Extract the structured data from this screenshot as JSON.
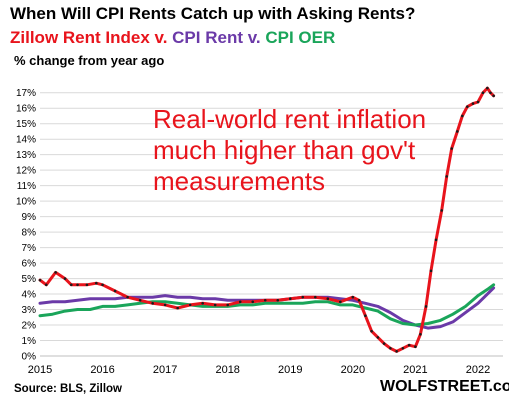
{
  "chart_data": {
    "type": "line",
    "title": "When Will CPI Rents Catch up with Asking Rents?",
    "subtitle_parts": [
      {
        "text": "Zillow Rent Index v. ",
        "color": "#e8141c"
      },
      {
        "text": "CPI Rent v. ",
        "color": "#6b3aa8"
      },
      {
        "text": "CPI OER",
        "color": "#1aa55a"
      }
    ],
    "ylabel": "% change from year ago",
    "annotation": [
      "Real-world rent inflation",
      "much higher than gov't",
      "measurements"
    ],
    "source": "Source: BLS, Zillow",
    "brand": "WOLFSTREET.com",
    "ylim": [
      0,
      17.5
    ],
    "xlim": [
      2015,
      2022.4
    ],
    "yticks": [
      0,
      1,
      2,
      3,
      4,
      5,
      6,
      7,
      8,
      9,
      10,
      11,
      12,
      13,
      14,
      15,
      16,
      17
    ],
    "ytick_labels": [
      "0%",
      "1%",
      "2%",
      "3%",
      "4%",
      "5%",
      "6%",
      "7%",
      "8%",
      "9%",
      "10%",
      "11%",
      "12%",
      "13%",
      "14%",
      "15%",
      "16%",
      "17%"
    ],
    "xticks": [
      2015,
      2016,
      2017,
      2018,
      2019,
      2020,
      2021,
      2022
    ],
    "xtick_labels": [
      "2015",
      "2016",
      "2017",
      "2018",
      "2019",
      "2020",
      "2021",
      "2022"
    ],
    "grid": "horizontal",
    "series": [
      {
        "name": "Zillow Rent Index",
        "color": "#e8141c",
        "markers": true,
        "x": [
          2015.0,
          2015.1,
          2015.25,
          2015.4,
          2015.5,
          2015.6,
          2015.75,
          2015.9,
          2016.0,
          2016.2,
          2016.4,
          2016.6,
          2016.8,
          2017.0,
          2017.2,
          2017.4,
          2017.6,
          2017.8,
          2018.0,
          2018.2,
          2018.4,
          2018.6,
          2018.8,
          2019.0,
          2019.2,
          2019.4,
          2019.6,
          2019.8,
          2020.0,
          2020.1,
          2020.2,
          2020.3,
          2020.4,
          2020.5,
          2020.6,
          2020.7,
          2020.8,
          2020.9,
          2021.0,
          2021.08,
          2021.17,
          2021.25,
          2021.33,
          2021.42,
          2021.5,
          2021.58,
          2021.67,
          2021.75,
          2021.83,
          2021.92,
          2022.0,
          2022.08,
          2022.15,
          2022.2,
          2022.25
        ],
        "values": [
          4.9,
          4.6,
          5.4,
          5.0,
          4.6,
          4.6,
          4.6,
          4.7,
          4.6,
          4.2,
          3.8,
          3.6,
          3.4,
          3.3,
          3.1,
          3.3,
          3.4,
          3.3,
          3.3,
          3.5,
          3.5,
          3.6,
          3.6,
          3.7,
          3.8,
          3.8,
          3.7,
          3.5,
          3.8,
          3.6,
          2.6,
          1.6,
          1.2,
          0.8,
          0.5,
          0.3,
          0.5,
          0.7,
          0.6,
          1.4,
          3.2,
          5.5,
          7.5,
          9.4,
          11.6,
          13.4,
          14.5,
          15.5,
          16.1,
          16.3,
          16.4,
          17.0,
          17.3,
          17.0,
          16.8
        ]
      },
      {
        "name": "CPI Rent",
        "color": "#6b3aa8",
        "markers": false,
        "x": [
          2015.0,
          2015.2,
          2015.4,
          2015.6,
          2015.8,
          2016.0,
          2016.2,
          2016.4,
          2016.6,
          2016.8,
          2017.0,
          2017.2,
          2017.4,
          2017.6,
          2017.8,
          2018.0,
          2018.2,
          2018.4,
          2018.6,
          2018.8,
          2019.0,
          2019.2,
          2019.4,
          2019.6,
          2019.8,
          2020.0,
          2020.2,
          2020.4,
          2020.6,
          2020.8,
          2021.0,
          2021.2,
          2021.4,
          2021.6,
          2021.8,
          2022.0,
          2022.15,
          2022.25
        ],
        "values": [
          3.4,
          3.5,
          3.5,
          3.6,
          3.7,
          3.7,
          3.7,
          3.8,
          3.8,
          3.8,
          3.9,
          3.8,
          3.8,
          3.7,
          3.7,
          3.6,
          3.6,
          3.6,
          3.6,
          3.6,
          3.7,
          3.8,
          3.8,
          3.8,
          3.7,
          3.6,
          3.4,
          3.2,
          2.8,
          2.3,
          2.0,
          1.8,
          1.9,
          2.2,
          2.8,
          3.4,
          4.0,
          4.4
        ]
      },
      {
        "name": "CPI OER",
        "color": "#1aa55a",
        "markers": false,
        "x": [
          2015.0,
          2015.2,
          2015.4,
          2015.6,
          2015.8,
          2016.0,
          2016.2,
          2016.4,
          2016.6,
          2016.8,
          2017.0,
          2017.2,
          2017.4,
          2017.6,
          2017.8,
          2018.0,
          2018.2,
          2018.4,
          2018.6,
          2018.8,
          2019.0,
          2019.2,
          2019.4,
          2019.6,
          2019.8,
          2020.0,
          2020.2,
          2020.4,
          2020.6,
          2020.8,
          2021.0,
          2021.2,
          2021.4,
          2021.6,
          2021.8,
          2022.0,
          2022.15,
          2022.25
        ],
        "values": [
          2.6,
          2.7,
          2.9,
          3.0,
          3.0,
          3.2,
          3.2,
          3.3,
          3.4,
          3.5,
          3.5,
          3.4,
          3.3,
          3.2,
          3.2,
          3.2,
          3.3,
          3.3,
          3.4,
          3.4,
          3.4,
          3.4,
          3.5,
          3.5,
          3.3,
          3.3,
          3.1,
          2.9,
          2.4,
          2.1,
          2.0,
          2.1,
          2.3,
          2.7,
          3.2,
          3.9,
          4.3,
          4.6
        ]
      }
    ]
  }
}
